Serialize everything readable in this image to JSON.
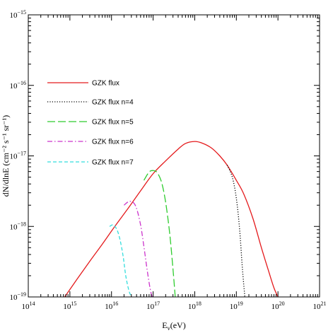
{
  "chart_data": {
    "type": "line",
    "title": "",
    "xlabel": "E_ν(eV)",
    "ylabel": "dN/dlnE (cm⁻² s⁻¹ sr⁻¹)",
    "x_scale": "log",
    "y_scale": "log",
    "xlim": [
      100000000000000.0,
      1e+21
    ],
    "ylim": [
      1e-19,
      1e-15
    ],
    "x_ticks": [
      100000000000000.0,
      1000000000000000.0,
      1e+16,
      1e+17,
      1e+18,
      1e+19,
      1e+20,
      1e+21
    ],
    "x_tick_labels": [
      {
        "base": "10",
        "exp": "14"
      },
      {
        "base": "10",
        "exp": "15"
      },
      {
        "base": "10",
        "exp": "16"
      },
      {
        "base": "10",
        "exp": "17"
      },
      {
        "base": "10",
        "exp": "18"
      },
      {
        "base": "10",
        "exp": "19"
      },
      {
        "base": "10",
        "exp": "20"
      },
      {
        "base": "10",
        "exp": "21"
      }
    ],
    "y_ticks": [
      1e-19,
      1e-18,
      1e-17,
      1e-16,
      1e-15
    ],
    "y_tick_labels": [
      {
        "base": "10",
        "exp": "−19"
      },
      {
        "base": "10",
        "exp": "−18"
      },
      {
        "base": "10",
        "exp": "−17"
      },
      {
        "base": "10",
        "exp": "−16"
      },
      {
        "base": "10",
        "exp": "−15"
      }
    ],
    "grid": false,
    "legend_position": "top-left",
    "series": [
      {
        "name": "GZK flux",
        "color": "#e41a1c",
        "dash": "solid",
        "x": [
          750000000000000.0,
          1500000000000000.0,
          3000000000000000.0,
          6000000000000000.0,
          1.2e+16,
          2.5e+16,
          5e+16,
          1e+17,
          2e+17,
          4e+17,
          6e+17,
          1e+18,
          1.5e+18,
          2.5e+18,
          4e+18,
          6e+18,
          1e+19,
          1.5e+19,
          2.5e+19,
          4e+19,
          6e+19,
          8e+19,
          1e+20
        ],
        "y": [
          1e-19,
          1.8e-19,
          3.2e-19,
          5.6e-19,
          1e-18,
          1.8e-18,
          3.2e-18,
          5.6e-18,
          8.5e-18,
          1.25e-17,
          1.5e-17,
          1.6e-17,
          1.52e-17,
          1.3e-17,
          1e-17,
          7.4e-18,
          4.5e-18,
          2.9e-18,
          1.3e-18,
          5e-19,
          2.3e-19,
          1.35e-19,
          1e-19
        ]
      },
      {
        "name": "GZK flux n=4",
        "color": "#000000",
        "dash": "dotted",
        "x": [
          6e+18,
          8e+18,
          1e+19,
          1.2e+19,
          1.4e+19,
          1.6e+19
        ],
        "y": [
          7.4e-18,
          5e-18,
          2.5e-18,
          9e-19,
          2.5e-19,
          1e-19
        ]
      },
      {
        "name": "GZK flux n=5",
        "color": "#2ecc2e",
        "dash": "longdash",
        "x": [
          6e+16,
          8e+16,
          1e+17,
          1.25e+17,
          1.6e+17,
          2e+17,
          2.5e+17,
          3e+17,
          3.4e+17
        ],
        "y": [
          4.5e-18,
          5.9e-18,
          6.2e-18,
          5.8e-18,
          4.2e-18,
          2.2e-18,
          8e-19,
          2.5e-19,
          1e-19
        ]
      },
      {
        "name": "GZK flux n=6",
        "color": "#cc33cc",
        "dash": "dashdot",
        "x": [
          2e+16,
          2.6e+16,
          3.3e+16,
          4e+16,
          5e+16,
          6e+16,
          7.2e+16,
          8.5e+16,
          9.5e+16
        ],
        "y": [
          2e-18,
          2.25e-18,
          2.2e-18,
          1.8e-18,
          1.05e-18,
          5.2e-19,
          2.4e-19,
          1.3e-19,
          1e-19
        ]
      },
      {
        "name": "GZK flux n=7",
        "color": "#33dddd",
        "dash": "dashed",
        "x": [
          9000000000000000.0,
          1.1e+16,
          1.35e+16,
          1.6e+16,
          1.9e+16,
          2.2e+16,
          2.6e+16,
          3e+16
        ],
        "y": [
          1e-18,
          1.05e-18,
          9e-19,
          6.5e-19,
          3.8e-19,
          2e-19,
          1.25e-19,
          1e-19
        ]
      }
    ]
  }
}
